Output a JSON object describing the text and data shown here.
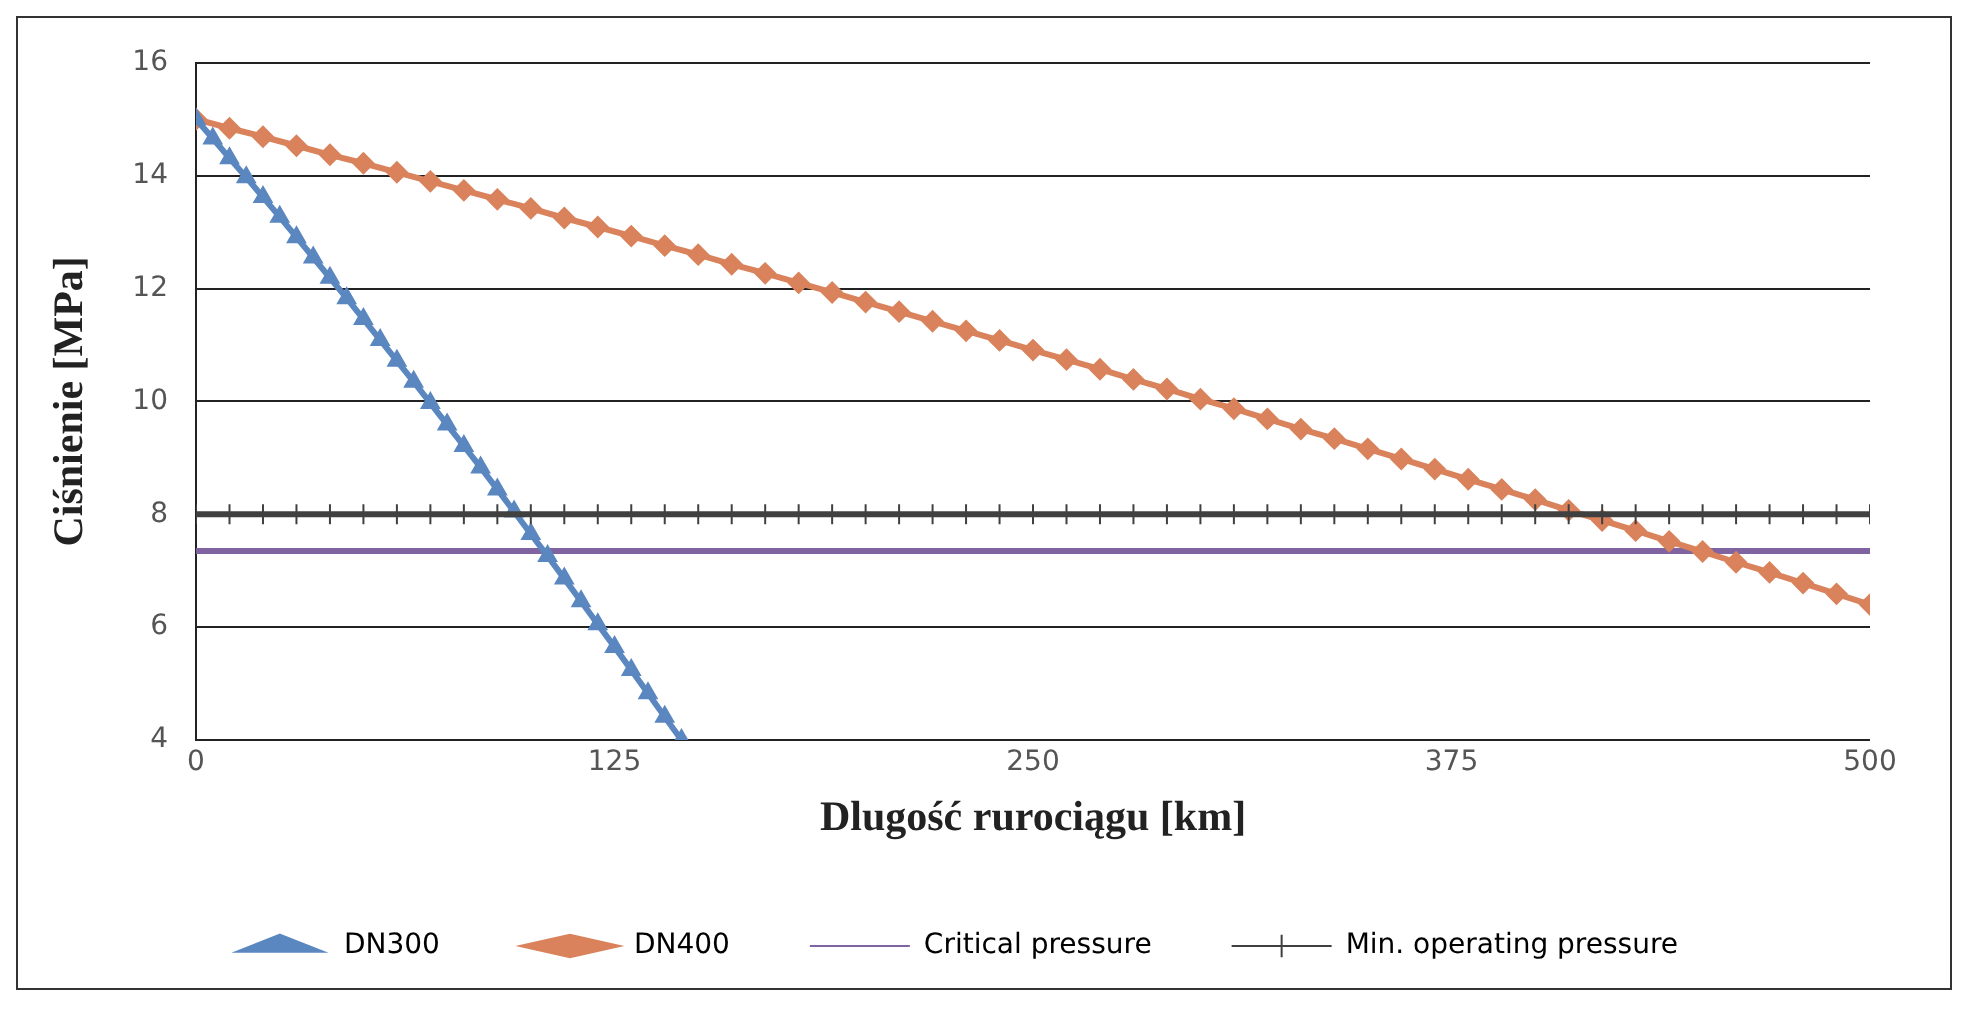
{
  "chart_data": {
    "type": "line",
    "xlabel": "Dlugość rurociągu [km]",
    "ylabel": "Ciśnienie [MPa]",
    "xlim": [
      0,
      500
    ],
    "xticks": [
      0,
      125,
      250,
      375,
      500
    ],
    "ylim": [
      4,
      16
    ],
    "yticks": [
      4,
      6,
      8,
      10,
      12,
      14,
      16
    ],
    "grid": "y",
    "legend": "bottom",
    "line_style": "solid",
    "series": [
      {
        "name": "DN300",
        "color": "#5b87c0",
        "marker": "triangle",
        "x": [
          0,
          5,
          10,
          15,
          20,
          25,
          30,
          35,
          40,
          45,
          50,
          55,
          60,
          65,
          70,
          75,
          80,
          85,
          90,
          95,
          100,
          105,
          110,
          115,
          120,
          125,
          130,
          135,
          140,
          145
        ],
        "values": [
          15.0,
          14.66,
          14.31,
          13.97,
          13.62,
          13.27,
          12.91,
          12.55,
          12.19,
          11.83,
          11.46,
          11.09,
          10.72,
          10.35,
          9.97,
          9.59,
          9.21,
          8.83,
          8.44,
          8.05,
          7.65,
          7.26,
          6.86,
          6.46,
          6.05,
          5.65,
          5.24,
          4.83,
          4.41,
          4.0
        ]
      },
      {
        "name": "DN400",
        "color": "#d9825b",
        "marker": "diamond",
        "x": [
          0,
          10,
          20,
          30,
          40,
          50,
          60,
          70,
          80,
          90,
          100,
          110,
          120,
          130,
          140,
          150,
          160,
          170,
          180,
          190,
          200,
          210,
          220,
          230,
          240,
          250,
          260,
          270,
          280,
          290,
          300,
          310,
          320,
          330,
          340,
          350,
          360,
          370,
          380,
          390,
          400,
          410,
          420,
          430,
          440,
          450,
          460,
          470,
          480,
          490,
          500
        ],
        "values": [
          15.0,
          14.84,
          14.69,
          14.53,
          14.37,
          14.22,
          14.06,
          13.9,
          13.74,
          13.58,
          13.42,
          13.25,
          13.09,
          12.93,
          12.76,
          12.6,
          12.43,
          12.27,
          12.1,
          11.93,
          11.76,
          11.59,
          11.42,
          11.25,
          11.08,
          10.91,
          10.74,
          10.57,
          10.39,
          10.22,
          10.04,
          9.87,
          9.69,
          9.51,
          9.34,
          9.16,
          8.98,
          8.8,
          8.62,
          8.44,
          8.26,
          8.07,
          7.89,
          7.71,
          7.52,
          7.34,
          7.15,
          6.97,
          6.78,
          6.59,
          6.4
        ]
      },
      {
        "name": "Critical pressure",
        "color": "#8064a2",
        "marker": "none",
        "x": [
          0,
          500
        ],
        "values": [
          7.35,
          7.35
        ]
      },
      {
        "name": "Min. operating pressure",
        "color": "#404040",
        "marker": "cross",
        "x": [
          0,
          10,
          20,
          30,
          40,
          50,
          60,
          70,
          80,
          90,
          100,
          110,
          120,
          130,
          140,
          150,
          160,
          170,
          180,
          190,
          200,
          210,
          220,
          230,
          240,
          250,
          260,
          270,
          280,
          290,
          300,
          310,
          320,
          330,
          340,
          350,
          360,
          370,
          380,
          390,
          400,
          410,
          420,
          430,
          440,
          450,
          460,
          470,
          480,
          490,
          500
        ],
        "values": [
          8,
          8,
          8,
          8,
          8,
          8,
          8,
          8,
          8,
          8,
          8,
          8,
          8,
          8,
          8,
          8,
          8,
          8,
          8,
          8,
          8,
          8,
          8,
          8,
          8,
          8,
          8,
          8,
          8,
          8,
          8,
          8,
          8,
          8,
          8,
          8,
          8,
          8,
          8,
          8,
          8,
          8,
          8,
          8,
          8,
          8,
          8,
          8,
          8,
          8,
          8
        ]
      }
    ]
  }
}
